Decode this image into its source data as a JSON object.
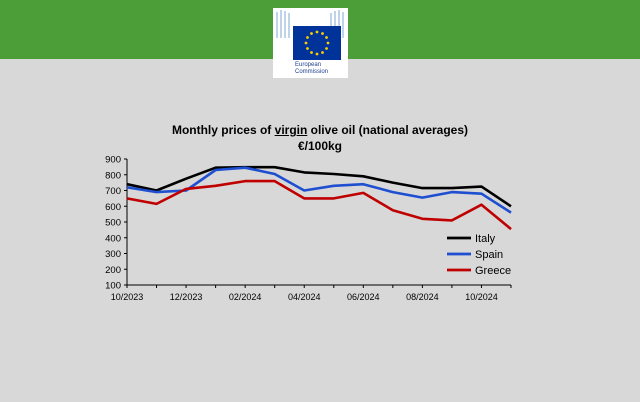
{
  "logo": {
    "line1": "European",
    "line2": "Commission",
    "brand_blue": "#003399",
    "star_yellow": "#ffcc00"
  },
  "header": {
    "color": "#4c9f38"
  },
  "chart_data": {
    "type": "line",
    "title_before": "Monthly prices of ",
    "title_highlight": "virgin",
    "title_after": " olive oil (national averages)",
    "subtitle": "€/100kg",
    "x": [
      "10/2023",
      "11/2023",
      "12/2023",
      "01/2024",
      "02/2024",
      "03/2024",
      "04/2024",
      "05/2024",
      "06/2024",
      "07/2024",
      "08/2024",
      "09/2024",
      "10/2024",
      "11/2024"
    ],
    "x_tick_labels": [
      "10/2023",
      "12/2023",
      "02/2024",
      "04/2024",
      "06/2024",
      "08/2024",
      "10/2024"
    ],
    "ylim": [
      100,
      900
    ],
    "y_ticks": [
      100,
      200,
      300,
      400,
      500,
      600,
      700,
      800,
      900
    ],
    "grid": false,
    "legend_position": "right",
    "series": [
      {
        "name": "Italy",
        "color": "#000000",
        "values": [
          740,
          700,
          775,
          845,
          848,
          848,
          815,
          805,
          790,
          750,
          715,
          715,
          725,
          600
        ]
      },
      {
        "name": "Spain",
        "color": "#1f4fd1",
        "values": [
          720,
          690,
          700,
          830,
          845,
          805,
          700,
          730,
          740,
          690,
          655,
          690,
          680,
          560
        ]
      },
      {
        "name": "Greece",
        "color": "#c00000",
        "values": [
          650,
          615,
          710,
          730,
          760,
          760,
          650,
          650,
          685,
          575,
          520,
          510,
          610,
          455
        ]
      }
    ]
  }
}
